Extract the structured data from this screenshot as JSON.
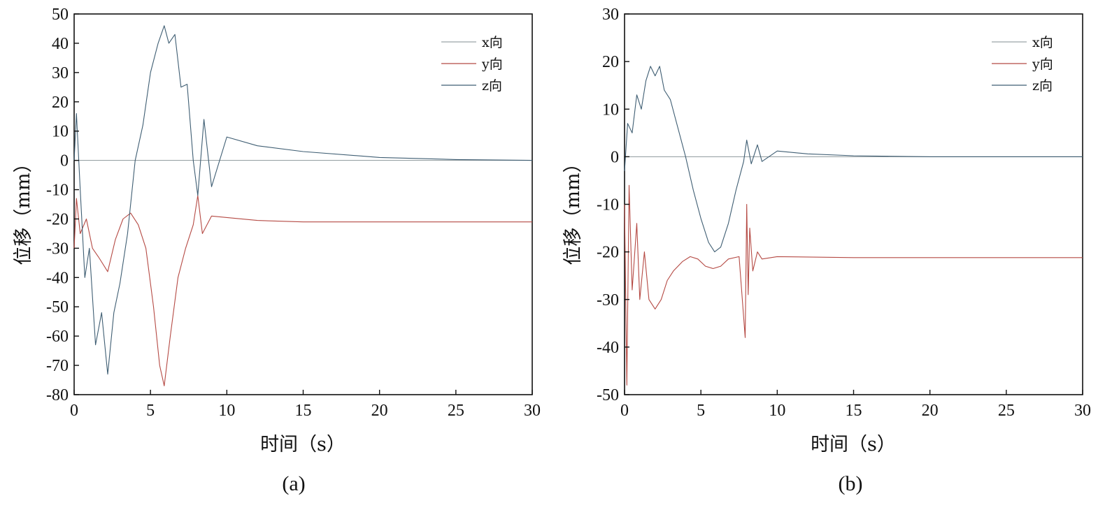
{
  "chart_data": [
    {
      "type": "line",
      "panel": "(a)",
      "xlabel": "时间（s）",
      "ylabel": "位移（mm）",
      "xlim": [
        0,
        30
      ],
      "ylim": [
        -80,
        50
      ],
      "xticks": [
        0,
        5,
        10,
        15,
        20,
        25,
        30
      ],
      "yticks": [
        50,
        40,
        30,
        20,
        10,
        0,
        -10,
        -20,
        -30,
        -40,
        -50,
        -60,
        -70,
        -80
      ],
      "grid": false,
      "legend_position": "top-right",
      "series": [
        {
          "name": "x向",
          "color": "#9aa3a6",
          "x": [
            0,
            0.3,
            30
          ],
          "y": [
            0,
            0,
            0
          ]
        },
        {
          "name": "y向",
          "color": "#b54a44",
          "x": [
            0,
            0.15,
            0.4,
            0.8,
            1.2,
            1.6,
            2.2,
            2.7,
            3.2,
            3.7,
            4.2,
            4.7,
            5.2,
            5.6,
            5.9,
            6.3,
            6.8,
            7.3,
            7.8,
            8.1,
            8.4,
            9.0,
            10,
            12,
            15,
            20,
            25,
            30
          ],
          "y": [
            -30,
            -13,
            -25,
            -20,
            -30,
            -33,
            -38,
            -27,
            -20,
            -18,
            -22,
            -30,
            -50,
            -70,
            -77,
            -60,
            -40,
            -30,
            -22,
            -12,
            -25,
            -19,
            -19.5,
            -20.5,
            -21,
            -21,
            -21,
            -21
          ]
        },
        {
          "name": "z向",
          "color": "#3f5e73",
          "x": [
            0,
            0.15,
            0.4,
            0.7,
            1.0,
            1.4,
            1.8,
            2.2,
            2.6,
            3.0,
            3.5,
            4.0,
            4.5,
            5.0,
            5.5,
            5.9,
            6.2,
            6.6,
            7.0,
            7.4,
            7.8,
            8.1,
            8.5,
            9,
            10,
            12,
            15,
            20,
            25,
            30
          ],
          "y": [
            0,
            16,
            -10,
            -40,
            -30,
            -63,
            -52,
            -73,
            -52,
            -42,
            -25,
            0,
            12,
            30,
            40,
            46,
            40,
            43,
            25,
            26,
            0,
            -12,
            14,
            -9,
            8,
            5,
            3,
            1,
            0.3,
            0
          ]
        }
      ]
    },
    {
      "type": "line",
      "panel": "(b)",
      "xlabel": "时间（s）",
      "ylabel": "位移（mm）",
      "xlim": [
        0,
        30
      ],
      "ylim": [
        -50,
        30
      ],
      "xticks": [
        0,
        5,
        10,
        15,
        20,
        25,
        30
      ],
      "yticks": [
        30,
        20,
        10,
        0,
        -10,
        -20,
        -30,
        -40,
        -50
      ],
      "grid": false,
      "legend_position": "top-right",
      "series": [
        {
          "name": "x向",
          "color": "#9aa3a6",
          "x": [
            0,
            30
          ],
          "y": [
            0,
            0
          ]
        },
        {
          "name": "y向",
          "color": "#b54a44",
          "x": [
            0,
            0.15,
            0.3,
            0.5,
            0.8,
            1.0,
            1.3,
            1.6,
            2.0,
            2.4,
            2.8,
            3.2,
            3.8,
            4.3,
            4.8,
            5.3,
            5.8,
            6.3,
            6.8,
            7.5,
            7.9,
            8.0,
            8.1,
            8.2,
            8.4,
            8.7,
            9,
            10,
            15,
            20,
            25,
            30
          ],
          "y": [
            -10,
            -48,
            -6,
            -28,
            -14,
            -30,
            -20,
            -30,
            -32,
            -30,
            -26,
            -24,
            -22,
            -21,
            -21.5,
            -23,
            -23.5,
            -23,
            -21.5,
            -21,
            -38,
            -10,
            -29,
            -15,
            -24,
            -20,
            -21.5,
            -21,
            -21.2,
            -21.2,
            -21.2,
            -21.2
          ]
        },
        {
          "name": "z向",
          "color": "#3f5e73",
          "x": [
            0,
            0.2,
            0.5,
            0.8,
            1.1,
            1.4,
            1.7,
            2.0,
            2.3,
            2.6,
            3.0,
            3.5,
            4.0,
            4.5,
            5.0,
            5.5,
            5.9,
            6.3,
            6.8,
            7.3,
            7.8,
            8.0,
            8.3,
            8.7,
            9,
            10,
            12,
            15,
            20,
            25,
            30
          ],
          "y": [
            -3,
            7,
            5,
            13,
            10,
            16,
            19,
            17,
            19,
            14,
            12,
            6,
            0,
            -7,
            -13,
            -18,
            -20,
            -19,
            -14,
            -7,
            -1,
            3.5,
            -1.5,
            2.5,
            -1,
            1.2,
            0.6,
            0.2,
            0,
            0,
            0
          ]
        }
      ]
    }
  ]
}
